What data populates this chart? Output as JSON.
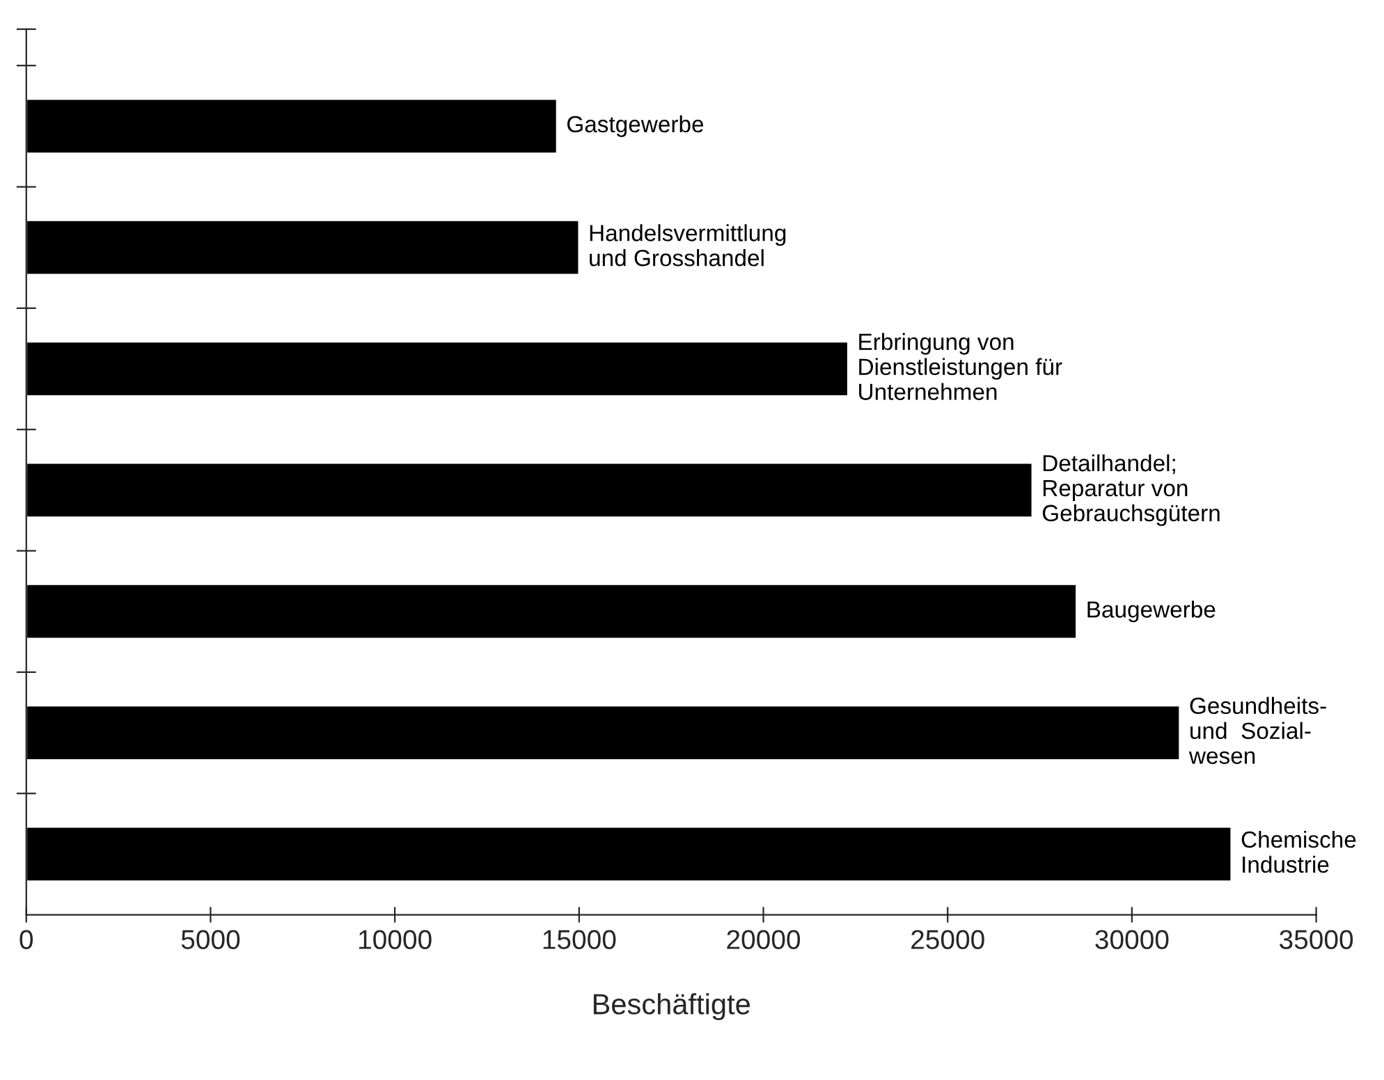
{
  "chart_data": {
    "type": "bar",
    "orientation": "horizontal",
    "xlabel": "Beschäftigte",
    "categories": [
      "Gastgewerbe",
      "Handelsvermittlung\nund Grosshandel",
      "Erbringung von\nDienstleistungen für\nUnternehmen",
      "Detailhandel;\nReparatur von\nGebrauchsgütern",
      "Baugewerbe",
      "Gesundheits-\nund  Sozial-\nwesen",
      "Chemische\nIndustrie"
    ],
    "values": [
      14400,
      15000,
      22300,
      27300,
      28500,
      31300,
      32700
    ],
    "color": "#000000",
    "xlim": [
      0,
      35000
    ],
    "xticks": [
      0,
      5000,
      10000,
      15000,
      20000,
      25000,
      30000,
      35000
    ],
    "grid": false
  }
}
